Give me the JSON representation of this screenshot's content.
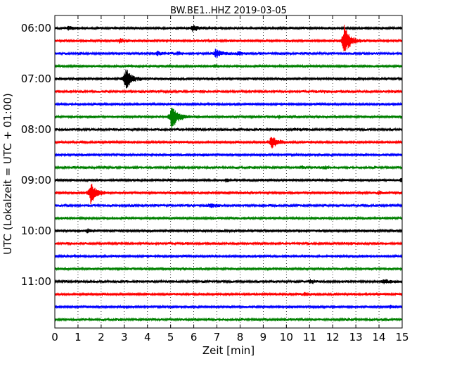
{
  "chart_data": {
    "type": "line",
    "title": "BW.BE1..HHZ 2019-03-05",
    "xlabel": "Zeit  [min]",
    "ylabel": "UTC (Lokalzeit = UTC + 01:00)",
    "xlim": [
      0,
      15
    ],
    "x_ticks": [
      "0",
      "1",
      "2",
      "3",
      "4",
      "5",
      "6",
      "7",
      "8",
      "9",
      "10",
      "11",
      "12",
      "13",
      "14",
      "15"
    ],
    "y_tick_labels": [
      "06:00",
      "07:00",
      "08:00",
      "09:00",
      "10:00",
      "11:00"
    ],
    "trace_interval_min": 15,
    "start_utc": "06:00",
    "trace_colors": [
      "#000000",
      "#ff0000",
      "#0000ff",
      "#008000"
    ],
    "grid": "vertical-dotted",
    "series": [
      {
        "start": "06:00",
        "color": "#000000",
        "events": [
          {
            "t": 0.55,
            "amp": 0.4
          },
          {
            "t": 5.95,
            "amp": 0.75
          }
        ]
      },
      {
        "start": "06:15",
        "color": "#ff0000",
        "events": [
          {
            "t": 2.8,
            "amp": 0.45
          },
          {
            "t": 12.5,
            "amp": 3.5
          }
        ]
      },
      {
        "start": "06:30",
        "color": "#0000ff",
        "events": [
          {
            "t": 4.4,
            "amp": 0.45
          },
          {
            "t": 5.3,
            "amp": 0.3
          },
          {
            "t": 6.95,
            "amp": 1.0
          },
          {
            "t": 7.9,
            "amp": 0.35
          }
        ]
      },
      {
        "start": "06:45",
        "color": "#008000",
        "events": [
          {
            "t": 6.9,
            "amp": 0.3
          }
        ]
      },
      {
        "start": "07:00",
        "color": "#000000",
        "events": [
          {
            "t": 3.05,
            "amp": 2.5
          }
        ]
      },
      {
        "start": "07:15",
        "color": "#ff0000",
        "events": [
          {
            "t": 11.6,
            "amp": 0.25
          }
        ]
      },
      {
        "start": "07:30",
        "color": "#0000ff",
        "events": []
      },
      {
        "start": "07:45",
        "color": "#008000",
        "events": [
          {
            "t": 5.05,
            "amp": 3.3
          },
          {
            "t": 9.7,
            "amp": 0.3
          }
        ]
      },
      {
        "start": "08:00",
        "color": "#000000",
        "events": [
          {
            "t": 10.35,
            "amp": 0.3
          }
        ]
      },
      {
        "start": "08:15",
        "color": "#ff0000",
        "events": [
          {
            "t": 9.35,
            "amp": 1.6
          }
        ]
      },
      {
        "start": "08:30",
        "color": "#0000ff",
        "events": [
          {
            "t": 6.4,
            "amp": 0.25
          }
        ]
      },
      {
        "start": "08:45",
        "color": "#008000",
        "events": [
          {
            "t": 10.6,
            "amp": 0.3
          },
          {
            "t": 11.6,
            "amp": 0.3
          }
        ]
      },
      {
        "start": "09:00",
        "color": "#000000",
        "events": [
          {
            "t": 7.4,
            "amp": 0.3
          },
          {
            "t": 14.95,
            "amp": 0.45
          }
        ]
      },
      {
        "start": "09:15",
        "color": "#ff0000",
        "events": [
          {
            "t": 1.55,
            "amp": 2.6
          },
          {
            "t": 14.0,
            "amp": 0.35
          }
        ]
      },
      {
        "start": "09:30",
        "color": "#0000ff",
        "events": [
          {
            "t": 6.7,
            "amp": 0.45
          }
        ]
      },
      {
        "start": "09:45",
        "color": "#008000",
        "events": []
      },
      {
        "start": "10:00",
        "color": "#000000",
        "events": [
          {
            "t": 1.4,
            "amp": 0.35
          }
        ]
      },
      {
        "start": "10:15",
        "color": "#ff0000",
        "events": []
      },
      {
        "start": "10:30",
        "color": "#0000ff",
        "events": []
      },
      {
        "start": "10:45",
        "color": "#008000",
        "events": []
      },
      {
        "start": "11:00",
        "color": "#000000",
        "events": [
          {
            "t": 11.05,
            "amp": 0.4
          },
          {
            "t": 14.2,
            "amp": 0.5
          }
        ]
      },
      {
        "start": "11:15",
        "color": "#ff0000",
        "events": [
          {
            "t": 10.8,
            "amp": 0.3
          }
        ]
      },
      {
        "start": "11:30",
        "color": "#0000ff",
        "events": [
          {
            "t": 14.5,
            "amp": 0.35
          }
        ]
      },
      {
        "start": "11:45",
        "color": "#008000",
        "events": []
      }
    ]
  }
}
